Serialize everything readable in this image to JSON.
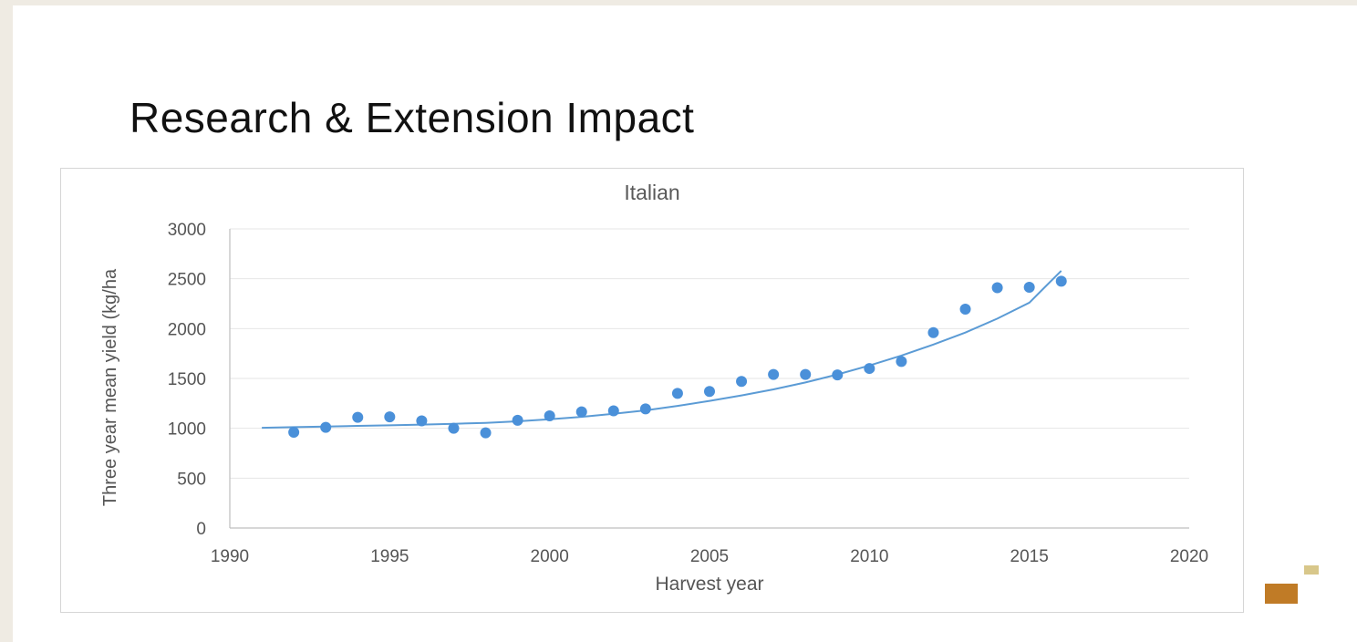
{
  "slide": {
    "title": "Research & Extension Impact"
  },
  "colors": {
    "series": "#4a90d9",
    "trend": "#5b9bd5",
    "accent_dark": "#c07b26",
    "accent_light": "#d8c78a"
  },
  "chart_data": {
    "type": "scatter",
    "title": "Italian",
    "xlabel": "Harvest year",
    "ylabel": "Three year mean yield (kg/ha",
    "xlim": [
      1990,
      2020
    ],
    "ylim": [
      0,
      3000
    ],
    "xticks": [
      1990,
      1995,
      2000,
      2005,
      2010,
      2015,
      2020
    ],
    "yticks": [
      0,
      500,
      1000,
      1500,
      2000,
      2500,
      3000
    ],
    "grid": "horizontal",
    "series": [
      {
        "x": [
          1992,
          1993,
          1994,
          1995,
          1996,
          1997,
          1998,
          1999,
          2000,
          2001,
          2002,
          2003,
          2004,
          2005,
          2006,
          2007,
          2008,
          2009,
          2010,
          2011,
          2012,
          2013,
          2014,
          2015,
          2016
        ],
        "y": [
          960,
          1010,
          1110,
          1115,
          1075,
          1000,
          955,
          1080,
          1125,
          1165,
          1175,
          1195,
          1350,
          1370,
          1470,
          1540,
          1540,
          1535,
          1600,
          1670,
          1960,
          2195,
          2410,
          2415,
          2475
        ]
      }
    ],
    "trendline": {
      "type": "polynomial",
      "x": [
        1991,
        1992,
        1993,
        1994,
        1995,
        1996,
        1997,
        1998,
        1999,
        2000,
        2001,
        2002,
        2003,
        2004,
        2005,
        2006,
        2007,
        2008,
        2009,
        2010,
        2011,
        2012,
        2013,
        2014,
        2015,
        2016
      ],
      "y": [
        1005,
        1012,
        1018,
        1024,
        1030,
        1037,
        1045,
        1055,
        1070,
        1090,
        1115,
        1145,
        1180,
        1225,
        1275,
        1330,
        1390,
        1460,
        1540,
        1630,
        1730,
        1840,
        1960,
        2100,
        2260,
        2580
      ]
    }
  }
}
